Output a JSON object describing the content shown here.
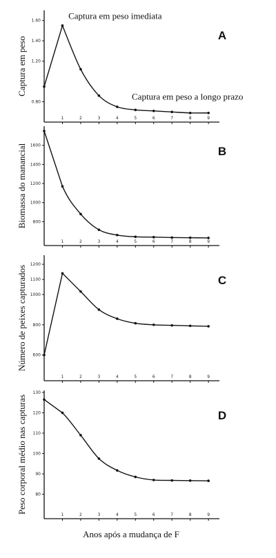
{
  "x_axis_label": "Anos após a mudança de F",
  "chart_data": [
    {
      "type": "line",
      "panel_label": "A",
      "ylabel": "Captura em peso",
      "x": [
        0,
        1,
        2,
        3,
        4,
        5,
        6,
        7,
        8,
        9
      ],
      "values": [
        0.95,
        1.55,
        1.12,
        0.86,
        0.75,
        0.72,
        0.71,
        0.7,
        0.69,
        0.69
      ],
      "ylim": [
        0.6,
        1.7
      ],
      "xlim": [
        0,
        9.6
      ],
      "y_ticks": [
        0.8,
        1.2,
        1.4,
        1.6
      ],
      "y_tick_labels": [
        "0.80",
        "1.20",
        "1.40",
        "1.60"
      ],
      "x_ticks": [
        1,
        2,
        3,
        4,
        5,
        6,
        7,
        8,
        9
      ],
      "annotations": [
        {
          "text": "Captura em peso imediata",
          "x": 1.1,
          "y": 1.56
        },
        {
          "text": "Captura em peso a longo prazo",
          "x": 4.8,
          "y": 0.82
        }
      ]
    },
    {
      "type": "line",
      "panel_label": "B",
      "ylabel": "Biomassa do manancial",
      "x": [
        0,
        1,
        2,
        3,
        4,
        5,
        6,
        7,
        8,
        9
      ],
      "values": [
        1750,
        1170,
        880,
        715,
        660,
        642,
        638,
        634,
        632,
        630
      ],
      "ylim": [
        550,
        1800
      ],
      "xlim": [
        0,
        9.6
      ],
      "y_ticks": [
        800,
        1000,
        1200,
        1400,
        1600
      ],
      "y_tick_labels": [
        "800",
        "1000",
        "1200",
        "1400",
        "1600"
      ],
      "x_ticks": [
        1,
        2,
        3,
        4,
        5,
        6,
        7,
        8,
        9
      ],
      "annotations": []
    },
    {
      "type": "line",
      "panel_label": "C",
      "ylabel": "Número de peixes capturados",
      "x": [
        0,
        1,
        2,
        3,
        4,
        5,
        6,
        7,
        8,
        9
      ],
      "values": [
        600,
        1140,
        1020,
        900,
        840,
        810,
        800,
        796,
        793,
        790
      ],
      "ylim": [
        430,
        1260
      ],
      "xlim": [
        0,
        9.6
      ],
      "y_ticks": [
        600,
        800,
        1000,
        1100,
        1200
      ],
      "y_tick_labels": [
        "600",
        "800",
        "1000",
        "1100",
        "1200"
      ],
      "x_ticks": [
        1,
        2,
        3,
        4,
        5,
        6,
        7,
        8,
        9
      ],
      "annotations": []
    },
    {
      "type": "line",
      "panel_label": "D",
      "ylabel": "Peso corporal médio nas capturas",
      "x": [
        0,
        1,
        2,
        3,
        4,
        5,
        6,
        7,
        8,
        9
      ],
      "values": [
        126.5,
        120,
        109,
        97.5,
        91.7,
        88.5,
        87,
        86.8,
        86.7,
        86.6
      ],
      "ylim": [
        68,
        131
      ],
      "xlim": [
        0,
        9.6
      ],
      "y_ticks": [
        80,
        90,
        100,
        110,
        120,
        130
      ],
      "y_tick_labels": [
        "80",
        "90",
        "100",
        "110",
        "120",
        "130"
      ],
      "x_ticks": [
        1,
        2,
        3,
        4,
        5,
        6,
        7,
        8,
        9
      ],
      "annotations": []
    }
  ]
}
